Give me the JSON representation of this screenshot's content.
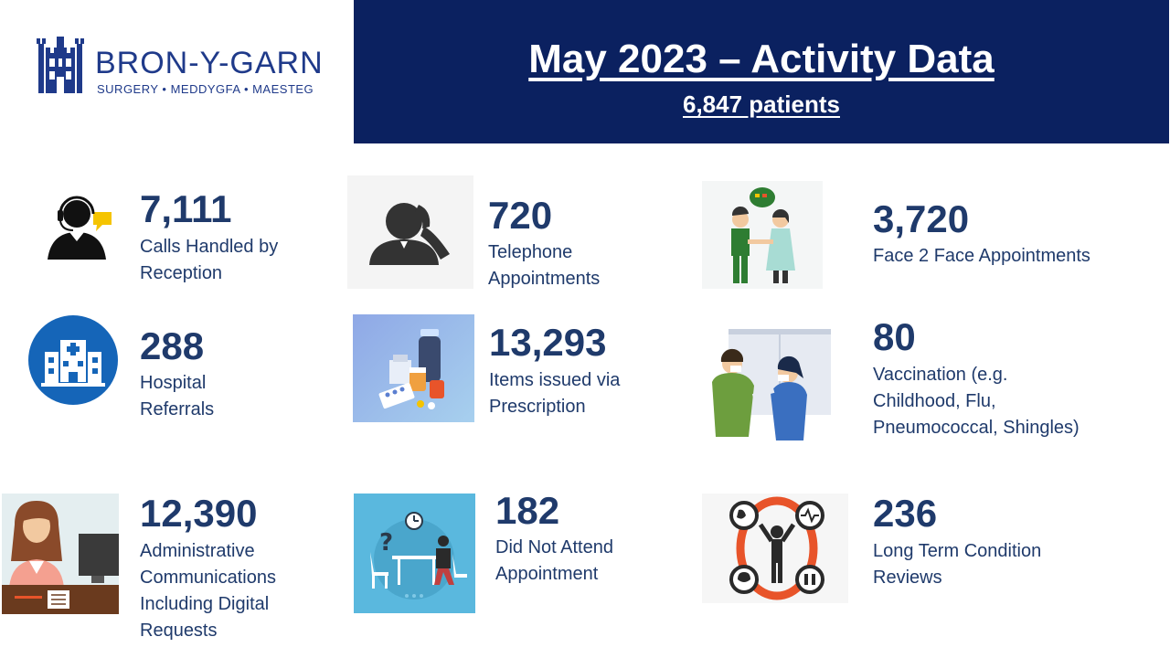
{
  "logo": {
    "name": "BRON-Y-GARN",
    "tagline": "SURGERY • MEDDYGFA • MAESTEG"
  },
  "header": {
    "title": "May 2023 – Activity Data",
    "subtitle": "6,847 patients"
  },
  "stats": {
    "calls": {
      "value": "7,111",
      "label_lines": [
        "Calls Handled by",
        "Reception"
      ],
      "icon": "call-center-agent-icon"
    },
    "telephone": {
      "value": "720",
      "label_lines": [
        "Telephone",
        "Appointments"
      ],
      "icon": "phone-call-icon"
    },
    "face2face": {
      "value": "3,720",
      "label_lines": [
        "Face 2 Face Appointments"
      ],
      "icon": "doctor-patient-icon"
    },
    "hospital": {
      "value": "288",
      "label_lines": [
        "Hospital",
        "Referrals"
      ],
      "icon": "hospital-icon"
    },
    "prescription": {
      "value": "13,293",
      "label_lines": [
        "Items issued via",
        "Prescription"
      ],
      "icon": "medicine-icon"
    },
    "vaccination": {
      "value": "80",
      "label_lines": [
        "Vaccination (e.g.",
        "Childhood, Flu,",
        "Pneumococcal, Shingles)"
      ],
      "icon": "vaccination-icon"
    },
    "admin": {
      "value": "12,390",
      "label_lines": [
        "Administrative",
        "Communications",
        "Including Digital",
        "Requests"
      ],
      "icon": "receptionist-icon"
    },
    "dna": {
      "value": "182",
      "label_lines": [
        "Did Not Attend",
        "Appointment"
      ],
      "icon": "empty-chair-icon"
    },
    "ltc": {
      "value": "236",
      "label_lines": [
        "Long Term Condition",
        "Reviews"
      ],
      "icon": "long-term-condition-icon"
    }
  },
  "colors": {
    "navy": "#0b2160",
    "text": "#1f3a6b",
    "brand": "#1f3a8a",
    "accent_orange": "#e8542a"
  }
}
